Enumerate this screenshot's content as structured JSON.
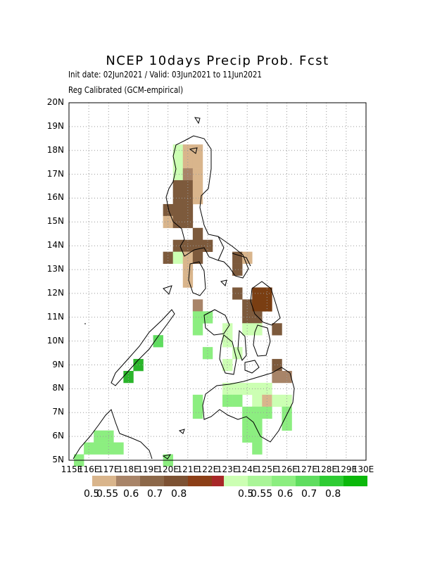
{
  "title": "NCEP 10days Precip Prob. Fcst",
  "subtitle1": "Init date: 02Jun2021 / Valid: 03Jun2021 to 11Jun2021",
  "subtitle2": "Reg Calibrated (GCM-empirical)",
  "lat_labels": [
    "20N",
    "19N",
    "18N",
    "17N",
    "16N",
    "15N",
    "14N",
    "13N",
    "12N",
    "11N",
    "10N",
    "9N",
    "8N",
    "7N",
    "6N",
    "5N"
  ],
  "lon_labels": [
    "115E",
    "116E",
    "117E",
    "118E",
    "119E",
    "120E",
    "121E",
    "122E",
    "123E",
    "124E",
    "125E",
    "126E",
    "127E",
    "128E",
    "129E",
    "130E"
  ],
  "legend_dry": {
    "colors": [
      "#d9b58c",
      "#a88468",
      "#8c6849",
      "#7d5233",
      "#8c3f17",
      "#a82828"
    ],
    "levels": [
      "0.5",
      "0.55",
      "0.6",
      "0.7",
      "0.8"
    ]
  },
  "legend_wet": {
    "colors": [
      "#ccffb3",
      "#aaf598",
      "#8cee80",
      "#5fdd5f",
      "#2ecc33",
      "#0bb80b"
    ],
    "levels": [
      "0.5",
      "0.55",
      "0.6",
      "0.7",
      "0.8"
    ]
  },
  "chart_data": {
    "type": "heatmap",
    "lon_range": [
      115,
      130
    ],
    "lat_range": [
      5,
      20
    ],
    "cell_deg": 0.5,
    "note_cells": "each cell: [lon, lat, category]; category D1..D5 below-normal (brown), W1..W5 above-normal (green)",
    "cells": [
      [
        120.5,
        18,
        "W1"
      ],
      [
        121,
        18,
        "D1"
      ],
      [
        121.5,
        18,
        "D1"
      ],
      [
        120.5,
        17.5,
        "W1"
      ],
      [
        121,
        17.5,
        "D1"
      ],
      [
        121.5,
        17.5,
        "D1"
      ],
      [
        120.5,
        17,
        "W1"
      ],
      [
        121,
        17,
        "D2"
      ],
      [
        121.5,
        17,
        "D1"
      ],
      [
        120.5,
        16.5,
        "D3"
      ],
      [
        121,
        16.5,
        "D3"
      ],
      [
        121.5,
        16.5,
        "D1"
      ],
      [
        120.5,
        16,
        "D3"
      ],
      [
        121,
        16,
        "D3"
      ],
      [
        121.5,
        16,
        "D1"
      ],
      [
        120,
        15.5,
        "D3"
      ],
      [
        120.5,
        15.5,
        "D3"
      ],
      [
        121,
        15.5,
        "D3"
      ],
      [
        120,
        15,
        "D1"
      ],
      [
        120.5,
        15,
        "D3"
      ],
      [
        121,
        15,
        "D3"
      ],
      [
        121.5,
        14.5,
        "D3"
      ],
      [
        120.5,
        14,
        "D3"
      ],
      [
        121,
        14,
        "D3"
      ],
      [
        121.5,
        14,
        "D3"
      ],
      [
        122,
        14,
        "D3"
      ],
      [
        120,
        13.5,
        "D3"
      ],
      [
        120.5,
        13.5,
        "W1"
      ],
      [
        121,
        13.5,
        "D1"
      ],
      [
        121.5,
        13.5,
        "D3"
      ],
      [
        123.5,
        13.5,
        "D3"
      ],
      [
        124,
        13.5,
        "D1"
      ],
      [
        121,
        13,
        "D1"
      ],
      [
        123.5,
        13,
        "D3"
      ],
      [
        121,
        12.5,
        "D1"
      ],
      [
        123.5,
        12,
        "D3"
      ],
      [
        124.5,
        12,
        "D4"
      ],
      [
        125,
        12,
        "D4"
      ],
      [
        121.5,
        11.5,
        "D2"
      ],
      [
        124,
        11.5,
        "D3"
      ],
      [
        124.5,
        11.5,
        "D4"
      ],
      [
        125,
        11.5,
        "D4"
      ],
      [
        121.5,
        11,
        "W3"
      ],
      [
        122,
        11,
        "W3"
      ],
      [
        124,
        11,
        "D3"
      ],
      [
        124.5,
        11,
        "D3"
      ],
      [
        121.5,
        10.5,
        "W3"
      ],
      [
        123,
        10.5,
        "W1"
      ],
      [
        124,
        10.5,
        "W1"
      ],
      [
        124.5,
        10.5,
        "W1"
      ],
      [
        125.5,
        10.5,
        "D3"
      ],
      [
        119.5,
        10,
        "W4"
      ],
      [
        123,
        10,
        "W1"
      ],
      [
        122,
        9.5,
        "W3"
      ],
      [
        123.5,
        9.5,
        "W1"
      ],
      [
        118.5,
        9,
        "W5"
      ],
      [
        123,
        9,
        "W1"
      ],
      [
        125.5,
        9,
        "D3"
      ],
      [
        118,
        8.5,
        "W5"
      ],
      [
        125.5,
        8.5,
        "D2"
      ],
      [
        126,
        8.5,
        "D2"
      ],
      [
        123,
        8,
        "W1"
      ],
      [
        123.5,
        8,
        "W1"
      ],
      [
        124,
        8,
        "W1"
      ],
      [
        124.5,
        8,
        "W1"
      ],
      [
        125,
        8,
        "W1"
      ],
      [
        121.5,
        7.5,
        "W3"
      ],
      [
        123,
        7.5,
        "W3"
      ],
      [
        123.5,
        7.5,
        "W3"
      ],
      [
        124.5,
        7.5,
        "W1"
      ],
      [
        125,
        7.5,
        "D1"
      ],
      [
        125.5,
        7.5,
        "W1"
      ],
      [
        126,
        7.5,
        "W1"
      ],
      [
        121.5,
        7,
        "W3"
      ],
      [
        124,
        7,
        "W3"
      ],
      [
        124.5,
        7,
        "W3"
      ],
      [
        125,
        7,
        "W3"
      ],
      [
        126,
        7,
        "W3"
      ],
      [
        124,
        6.5,
        "W3"
      ],
      [
        124.5,
        6.5,
        "W3"
      ],
      [
        126,
        6.5,
        "W3"
      ],
      [
        116.5,
        6,
        "W3"
      ],
      [
        117,
        6,
        "W3"
      ],
      [
        124,
        6,
        "W3"
      ],
      [
        124.5,
        6,
        "W3"
      ],
      [
        116,
        5.5,
        "W3"
      ],
      [
        116.5,
        5.5,
        "W3"
      ],
      [
        117,
        5.5,
        "W3"
      ],
      [
        117.5,
        5.5,
        "W3"
      ],
      [
        124.5,
        5.5,
        "W3"
      ],
      [
        115.5,
        5,
        "W3"
      ],
      [
        120,
        5,
        "W3"
      ]
    ]
  }
}
